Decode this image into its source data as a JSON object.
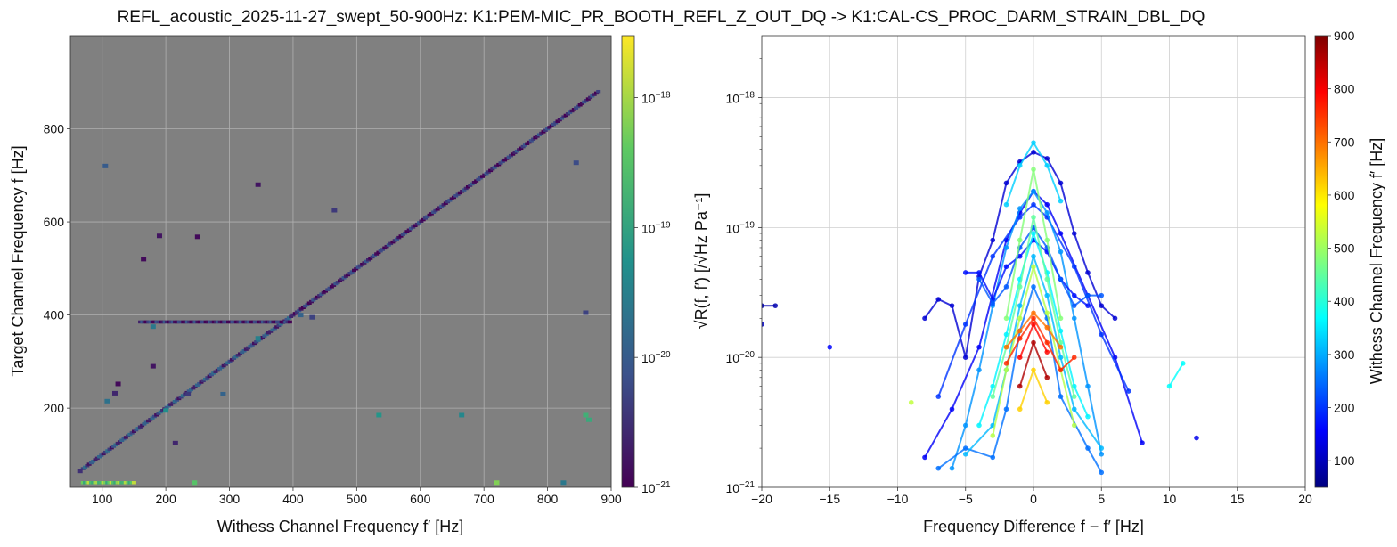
{
  "title": "REFL_acoustic_2025-11-27_swept_50-900Hz: K1:PEM-MIC_PR_BOOTH_REFL_Z_OUT_DQ -> K1:CAL-CS_PROC_DARM_STRAIN_DBL_DQ",
  "colors": {
    "heatmap_background": "#808080",
    "grid": "#b0b0b0",
    "colormap_viridis": [
      "#440154",
      "#3b528b",
      "#21918c",
      "#5ec962",
      "#fde725"
    ],
    "colormap_jet": [
      "#00007f",
      "#0000ff",
      "#007fff",
      "#00ffff",
      "#7fff7f",
      "#ffff00",
      "#ff7f00",
      "#ff0000",
      "#7f0000"
    ]
  },
  "chart_data": [
    {
      "type": "heatmap",
      "xlabel": "Withess Channel Frequency  f′ [Hz]",
      "ylabel": "Target Channel Frequency  f [Hz]",
      "xlim": [
        50,
        900
      ],
      "ylim": [
        30,
        1000
      ],
      "x_ticks": [
        100,
        200,
        300,
        400,
        500,
        600,
        700,
        800,
        900
      ],
      "y_ticks": [
        200,
        400,
        600,
        800
      ],
      "grid": true,
      "colorbar": {
        "label": "√R(f, f′)  [/√Hz Pa⁻¹]",
        "scale": "log",
        "range": [
          1e-21,
          3e-18
        ],
        "ticks": [
          {
            "value": 1e-21,
            "label": "10",
            "exp": "−21"
          },
          {
            "value": 1e-20,
            "label": "10",
            "exp": "−20"
          },
          {
            "value": 1e-19,
            "label": "10",
            "exp": "−19"
          },
          {
            "value": 1e-18,
            "label": "10",
            "exp": "−18"
          }
        ]
      },
      "segments": [
        {
          "from": [
            70,
            70
          ],
          "to": [
            400,
            400
          ],
          "log_value": -20.3
        },
        {
          "from": [
            400,
            400
          ],
          "to": [
            880,
            880
          ],
          "log_value": -20.6
        },
        {
          "from": [
            160,
            385
          ],
          "to": [
            395,
            385
          ],
          "log_value": -20.6
        },
        {
          "from": [
            70,
            40
          ],
          "to": [
            150,
            40
          ],
          "log_value": -18.4
        }
      ],
      "cells": [
        {
          "x": 105,
          "y": 720,
          "log_value": -20.0
        },
        {
          "x": 345,
          "y": 680,
          "log_value": -20.8
        },
        {
          "x": 250,
          "y": 568,
          "log_value": -20.9
        },
        {
          "x": 190,
          "y": 570,
          "log_value": -20.8
        },
        {
          "x": 165,
          "y": 520,
          "log_value": -20.9
        },
        {
          "x": 465,
          "y": 625,
          "log_value": -20.4
        },
        {
          "x": 412,
          "y": 400,
          "log_value": -19.9
        },
        {
          "x": 430,
          "y": 395,
          "log_value": -20.3
        },
        {
          "x": 345,
          "y": 350,
          "log_value": -19.5
        },
        {
          "x": 180,
          "y": 375,
          "log_value": -19.6
        },
        {
          "x": 180,
          "y": 290,
          "log_value": -20.8
        },
        {
          "x": 125,
          "y": 252,
          "log_value": -20.9
        },
        {
          "x": 120,
          "y": 232,
          "log_value": -20.6
        },
        {
          "x": 108,
          "y": 215,
          "log_value": -19.7
        },
        {
          "x": 235,
          "y": 230,
          "log_value": -20.4
        },
        {
          "x": 290,
          "y": 230,
          "log_value": -19.9
        },
        {
          "x": 535,
          "y": 185,
          "log_value": -19.2
        },
        {
          "x": 665,
          "y": 185,
          "log_value": -19.4
        },
        {
          "x": 860,
          "y": 185,
          "log_value": -18.8
        },
        {
          "x": 865,
          "y": 175,
          "log_value": -18.9
        },
        {
          "x": 860,
          "y": 405,
          "log_value": -20.3
        },
        {
          "x": 845,
          "y": 727,
          "log_value": -20.2
        },
        {
          "x": 215,
          "y": 125,
          "log_value": -20.6
        },
        {
          "x": 245,
          "y": 40,
          "log_value": -18.5
        },
        {
          "x": 720,
          "y": 40,
          "log_value": -18.2
        },
        {
          "x": 825,
          "y": 40,
          "log_value": -19.6
        },
        {
          "x": 200,
          "y": 195,
          "log_value": -19.3
        },
        {
          "x": 65,
          "y": 65,
          "log_value": -20.5
        }
      ]
    },
    {
      "type": "line",
      "xlabel": "Frequency Difference f − f′ [Hz]",
      "ylabel": "",
      "xlim": [
        -20,
        20
      ],
      "ylim": [
        1e-21,
        3e-18
      ],
      "yscale": "log",
      "x_ticks": [
        -20,
        -15,
        -10,
        -5,
        0,
        5,
        10,
        15,
        20
      ],
      "y_ticks": [
        {
          "value": 1e-21,
          "label": "10",
          "exp": "−21"
        },
        {
          "value": 1e-20,
          "label": "10",
          "exp": "−20"
        },
        {
          "value": 1e-19,
          "label": "10",
          "exp": "−19"
        },
        {
          "value": 1e-18,
          "label": "10",
          "exp": "−18"
        }
      ],
      "grid": true,
      "colorbar": {
        "label": "Withess Channel Frequency  f′ [Hz]",
        "range": [
          50,
          900
        ],
        "ticks": [
          100,
          200,
          300,
          400,
          500,
          600,
          700,
          800,
          900
        ]
      },
      "series": [
        {
          "color_value": 120,
          "points": [
            [
              -8,
              2e-20
            ],
            [
              -7,
              2.8e-20
            ],
            [
              -6,
              2.5e-20
            ],
            [
              -5,
              1e-20
            ],
            [
              -4,
              4.2e-20
            ],
            [
              -3,
              8e-20
            ],
            [
              -2,
              2.2e-19
            ],
            [
              -1,
              3.2e-19
            ],
            [
              0,
              3.8e-19
            ],
            [
              1,
              3.4e-19
            ],
            [
              2,
              2.2e-19
            ],
            [
              3,
              9e-20
            ],
            [
              4,
              4.5e-20
            ],
            [
              5,
              2.5e-20
            ],
            [
              6,
              2e-20
            ]
          ]
        },
        {
          "color_value": 150,
          "points": [
            [
              -8,
              1.7e-21
            ],
            [
              -6,
              4e-21
            ],
            [
              -4,
              1.2e-20
            ],
            [
              -2,
              8e-20
            ],
            [
              -1,
              1.3e-19
            ],
            [
              0,
              1.9e-19
            ],
            [
              1,
              1.5e-19
            ],
            [
              2,
              9e-20
            ],
            [
              4,
              3e-20
            ],
            [
              6,
              1e-20
            ],
            [
              8,
              2.2e-21
            ]
          ]
        },
        {
          "color_value": 200,
          "points": [
            [
              -7,
              5e-21
            ],
            [
              -5,
              1.8e-20
            ],
            [
              -3,
              6e-20
            ],
            [
              -1,
              1.2e-19
            ],
            [
              0,
              1.5e-19
            ],
            [
              1,
              1.2e-19
            ],
            [
              3,
              5e-20
            ],
            [
              5,
              1.5e-20
            ],
            [
              7,
              5.5e-21
            ]
          ]
        },
        {
          "color_value": 280,
          "points": [
            [
              -6,
              1.4e-21
            ],
            [
              -5,
              3e-21
            ],
            [
              -4,
              8e-21
            ],
            [
              -3,
              2.5e-20
            ],
            [
              -2,
              7e-20
            ],
            [
              -1,
              1.4e-19
            ],
            [
              0,
              1.9e-19
            ],
            [
              1,
              1.3e-19
            ],
            [
              2,
              6.5e-20
            ],
            [
              3,
              2e-20
            ],
            [
              4,
              6e-21
            ],
            [
              5,
              1.8e-21
            ]
          ]
        },
        {
          "color_value": 330,
          "points": [
            [
              -2,
              1.5e-19
            ],
            [
              -1,
              3e-19
            ],
            [
              0,
              4.5e-19
            ],
            [
              1,
              3e-19
            ],
            [
              2,
              1.6e-19
            ]
          ]
        },
        {
          "color_value": 250,
          "points": [
            [
              -7,
              1.4e-21
            ],
            [
              -5,
              2e-21
            ],
            [
              -3,
              1.7e-21
            ],
            [
              -2,
              4e-21
            ],
            [
              -1,
              1.6e-20
            ],
            [
              0,
              3.5e-20
            ],
            [
              1,
              2e-20
            ],
            [
              2,
              5e-21
            ],
            [
              4,
              2e-21
            ],
            [
              5,
              1.3e-21
            ]
          ]
        },
        {
          "color_value": 170,
          "points": [
            [
              -5,
              4.5e-20
            ],
            [
              -4,
              4.5e-20
            ],
            [
              -3,
              2.8e-20
            ],
            [
              -2,
              5e-20
            ],
            [
              -1,
              6e-20
            ],
            [
              0,
              8e-20
            ],
            [
              1,
              6.5e-20
            ],
            [
              2,
              4e-20
            ],
            [
              3,
              3e-20
            ],
            [
              4,
              2.5e-20
            ]
          ]
        },
        {
          "color_value": 230,
          "points": [
            [
              -4,
              4e-20
            ],
            [
              -3,
              2.6e-20
            ],
            [
              -2,
              3.5e-20
            ],
            [
              -1,
              7e-20
            ],
            [
              0,
              1e-19
            ],
            [
              1,
              7e-20
            ],
            [
              2,
              4e-20
            ],
            [
              3,
              2.5e-20
            ],
            [
              4,
              3e-20
            ],
            [
              5,
              3e-20
            ]
          ]
        },
        {
          "color_value": 310,
          "points": [
            [
              -5,
              1.8e-21
            ],
            [
              -3,
              3e-21
            ],
            [
              -2,
              8e-21
            ],
            [
              -1,
              2.5e-20
            ],
            [
              0,
              6e-20
            ],
            [
              1,
              3e-20
            ],
            [
              2,
              1e-20
            ],
            [
              3,
              4e-21
            ],
            [
              5,
              2e-21
            ]
          ]
        },
        {
          "color_value": 360,
          "points": [
            [
              -4,
              3e-21
            ],
            [
              -3,
              6e-21
            ],
            [
              -2,
              1.5e-20
            ],
            [
              -1,
              4e-20
            ],
            [
              0,
              9e-20
            ],
            [
              1,
              4.5e-20
            ],
            [
              2,
              1.6e-20
            ],
            [
              3,
              6e-21
            ],
            [
              4,
              3.5e-21
            ]
          ]
        },
        {
          "color_value": 450,
          "points": [
            [
              -3,
              5e-21
            ],
            [
              -2,
              1.2e-20
            ],
            [
              -1,
              3.5e-20
            ],
            [
              0,
              1.2e-19
            ],
            [
              1,
              4e-20
            ],
            [
              2,
              1.3e-20
            ],
            [
              3,
              5e-21
            ]
          ]
        },
        {
          "color_value": 480,
          "points": [
            [
              -2,
              2e-20
            ],
            [
              -1,
              8e-20
            ],
            [
              0,
              2.8e-19
            ],
            [
              1,
              8e-20
            ],
            [
              2,
              2e-20
            ]
          ]
        },
        {
          "color_value": 520,
          "points": [
            [
              -3,
              2.5e-21
            ],
            [
              -2,
              8e-21
            ],
            [
              -1,
              2e-20
            ],
            [
              0,
              5e-20
            ],
            [
              1,
              2.2e-20
            ],
            [
              2,
              8e-21
            ],
            [
              3,
              3e-21
            ]
          ]
        },
        {
          "color_value": 700,
          "points": [
            [
              -2,
              1.2e-20
            ],
            [
              -1,
              1.6e-20
            ],
            [
              0,
              2.2e-20
            ],
            [
              1,
              1.7e-20
            ],
            [
              2,
              1.2e-20
            ]
          ]
        },
        {
          "color_value": 790,
          "points": [
            [
              -1,
              1e-20
            ],
            [
              0,
              1.8e-20
            ],
            [
              1,
              1.1e-20
            ]
          ]
        },
        {
          "color_value": 860,
          "points": [
            [
              -1,
              6e-21
            ],
            [
              0,
              1.3e-20
            ],
            [
              1,
              7e-21
            ]
          ]
        },
        {
          "color_value": 760,
          "points": [
            [
              -2,
              9e-21
            ],
            [
              -1,
              1.4e-20
            ],
            [
              0,
              2e-20
            ],
            [
              1,
              1.3e-20
            ],
            [
              2,
              8e-21
            ],
            [
              3,
              1e-20
            ]
          ]
        },
        {
          "color_value": 620,
          "points": [
            [
              -1,
              4e-21
            ],
            [
              0,
              8e-21
            ],
            [
              1,
              4.5e-21
            ]
          ]
        },
        {
          "color_value": 90,
          "points": [
            [
              -20,
              2.5e-20
            ],
            [
              -19,
              2.5e-20
            ]
          ]
        },
        {
          "color_value": 160,
          "points": [
            [
              -15,
              1.2e-20
            ]
          ]
        },
        {
          "color_value": 370,
          "points": [
            [
              10,
              6e-21
            ],
            [
              11,
              9e-21
            ]
          ]
        },
        {
          "color_value": 530,
          "points": [
            [
              -9,
              4.5e-21
            ]
          ]
        },
        {
          "color_value": 140,
          "points": [
            [
              12,
              2.4e-21
            ]
          ]
        },
        {
          "color_value": 110,
          "points": [
            [
              -20,
              1.8e-20
            ]
          ]
        }
      ]
    }
  ]
}
